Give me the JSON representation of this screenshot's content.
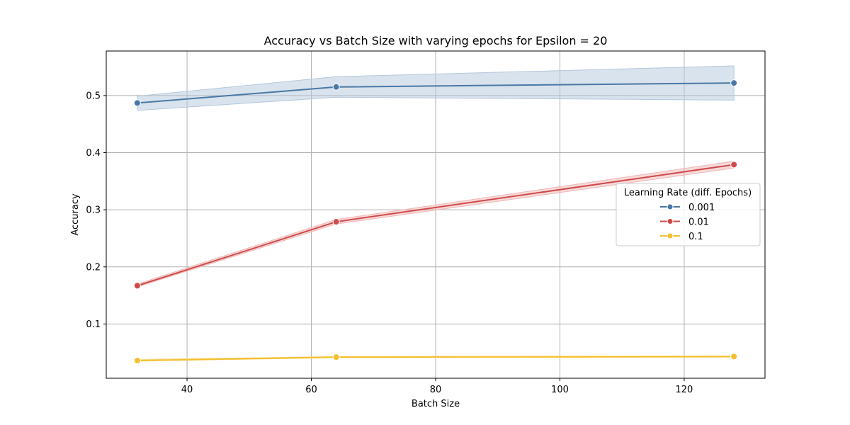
{
  "chart_data": {
    "type": "line",
    "title": "Accuracy vs Batch Size with varying epochs for Epsilon = 20",
    "xlabel": "Batch Size",
    "ylabel": "Accuracy",
    "xlim": [
      27,
      133
    ],
    "ylim": [
      0.005,
      0.578
    ],
    "xticks": [
      40,
      60,
      80,
      100,
      120
    ],
    "yticks": [
      0.1,
      0.2,
      0.3,
      0.4,
      0.5
    ],
    "x": [
      32,
      64,
      128
    ],
    "grid": true,
    "legend": {
      "title": "Learning Rate (diff. Epochs)",
      "placement": "center-right"
    },
    "series": [
      {
        "name": "0.001",
        "color": "#4a78a6",
        "band_color": "#b4c7dc",
        "values": [
          0.487,
          0.515,
          0.522
        ],
        "lower": [
          0.474,
          0.497,
          0.492
        ],
        "upper": [
          0.499,
          0.533,
          0.552
        ]
      },
      {
        "name": "0.01",
        "color": "#d04a4a",
        "band_color": "#f0b6b6",
        "values": [
          0.167,
          0.279,
          0.379
        ],
        "lower": [
          0.165,
          0.275,
          0.373
        ],
        "upper": [
          0.17,
          0.283,
          0.385
        ]
      },
      {
        "name": "0.1",
        "color": "#f4bf2e",
        "band_color": "#f9dd8f",
        "values": [
          0.036,
          0.042,
          0.043
        ],
        "lower": [
          0.035,
          0.041,
          0.042
        ],
        "upper": [
          0.038,
          0.043,
          0.044
        ]
      }
    ]
  }
}
